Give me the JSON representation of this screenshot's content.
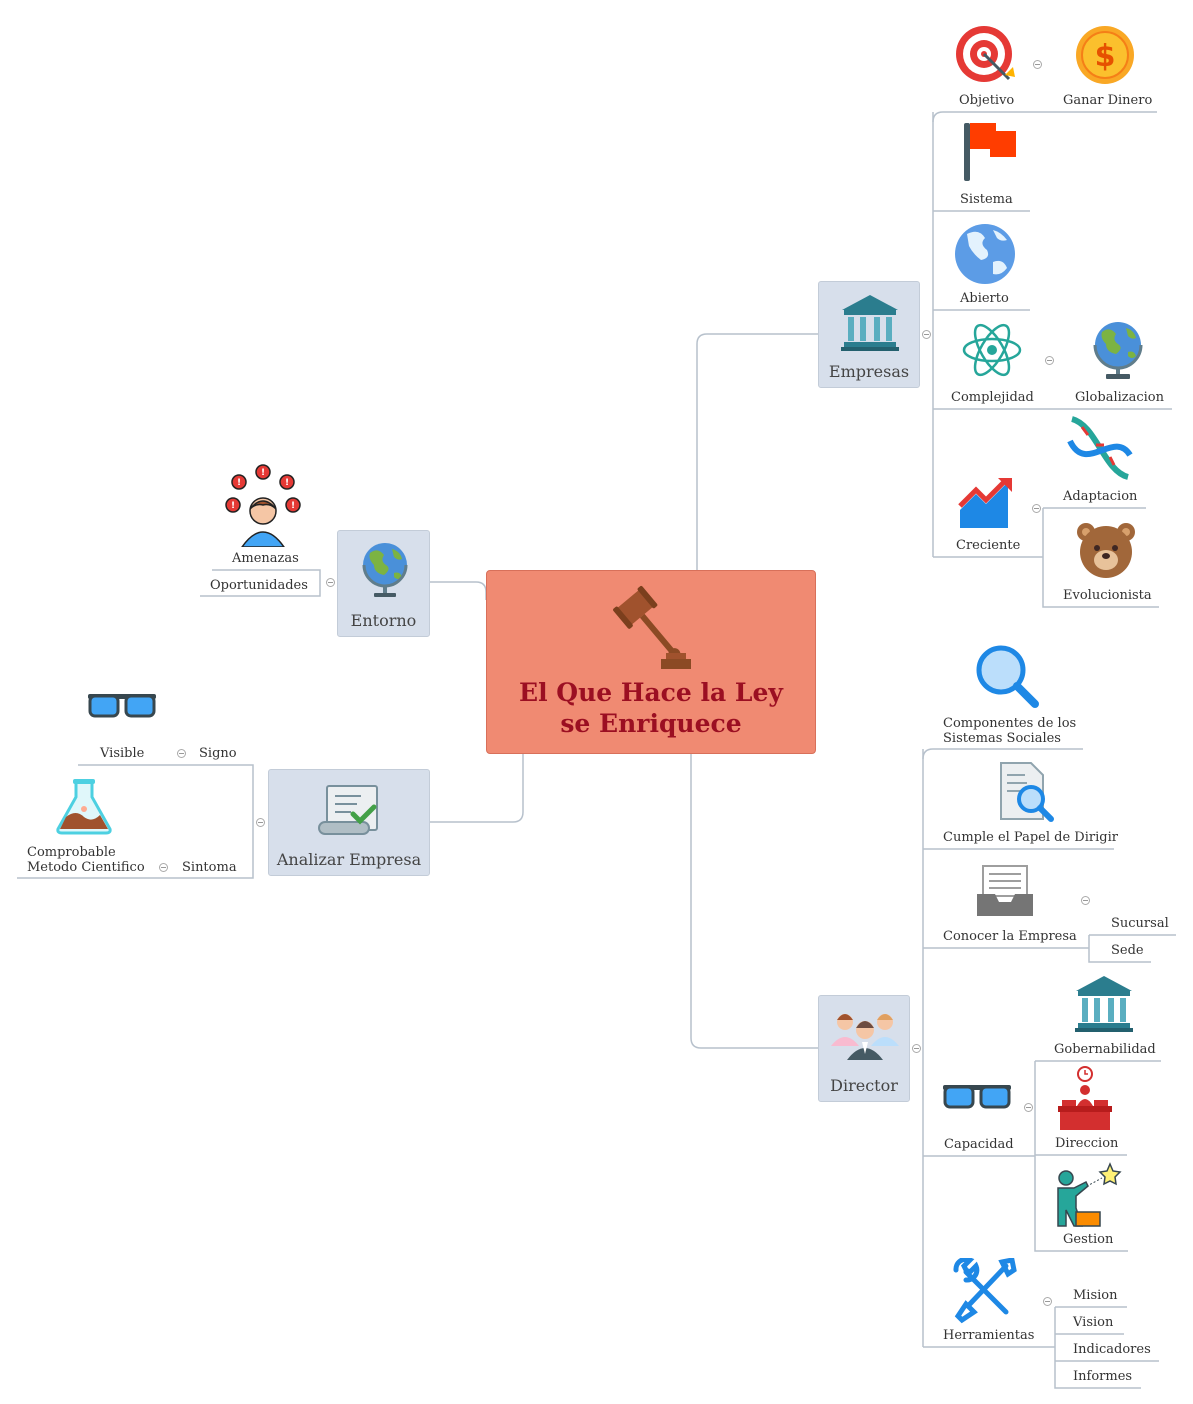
{
  "central": {
    "title": "El Que Hace la Ley\nse Enriquece"
  },
  "empresas": {
    "label": "Empresas",
    "objetivo": "Objetivo",
    "ganar_dinero": "Ganar Dinero",
    "sistema": "Sistema",
    "abierto": "Abierto",
    "complejidad": "Complejidad",
    "globalizacion": "Globalizacion",
    "creciente": "Creciente",
    "adaptacion": "Adaptacion",
    "evolucionista": "Evolucionista"
  },
  "entorno": {
    "label": "Entorno",
    "amenazas": "Amenazas",
    "oportunidades": "Oportunidades"
  },
  "analizar": {
    "label": "Analizar Empresa",
    "visible": "Visible",
    "signo": "Signo",
    "comprobable": "Comprobable",
    "metodo": "Metodo Cientifico",
    "sintoma": "Sintoma"
  },
  "director": {
    "label": "Director",
    "componentes_1": "Componentes de los",
    "componentes_2": "Sistemas Sociales",
    "cumple": "Cumple el Papel de Dirigir",
    "conocer": "Conocer la Empresa",
    "sucursal": "Sucursal",
    "sede": "Sede",
    "capacidad": "Capacidad",
    "gobernabilidad": "Gobernabilidad",
    "direccion": "Direccion",
    "gestion": "Gestion",
    "herramientas": "Herramientas",
    "mision": "Mision",
    "vision": "Vision",
    "indicadores": "Indicadores",
    "informes": "Informes"
  },
  "colors": {
    "line": "#b7c1cc",
    "center_fill": "#f08a72",
    "center_text": "#9b0f22",
    "topic_fill": "#d7dfeb"
  }
}
